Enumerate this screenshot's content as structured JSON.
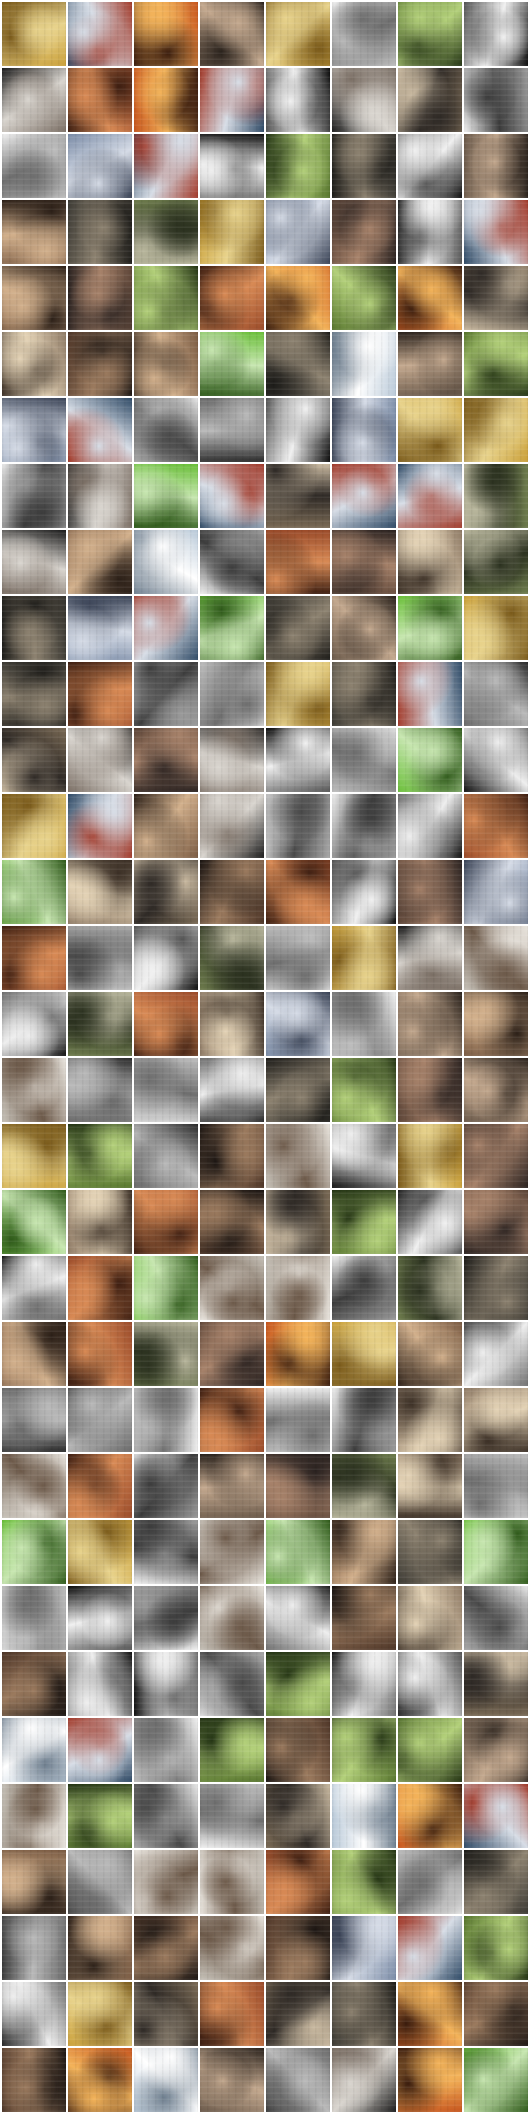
{
  "grid": {
    "palette": [
      [
        "#7a6a55",
        "#2f2a26",
        "#c9b9a0"
      ],
      [
        "#c7c2b9",
        "#6d5a4a",
        "#eae6df"
      ],
      [
        "#1c1c1c",
        "#d9d5cf",
        "#7b6f65"
      ],
      [
        "#e8e8e8",
        "#4a4a4a",
        "#a9a9a9"
      ],
      [
        "#3c3a34",
        "#8d8270",
        "#1d1c19"
      ],
      [
        "#caa03a",
        "#e8d38c",
        "#7a5a1a"
      ],
      [
        "#6e7c4d",
        "#2c3220",
        "#b8b69c"
      ],
      [
        "#5b4437",
        "#a7826a",
        "#2a2220"
      ],
      [
        "#7a8ba6",
        "#d5dbe6",
        "#3a4356"
      ],
      [
        "#4d3527",
        "#9b7a5e",
        "#1b1512"
      ],
      [
        "#f0f0f0",
        "#6e6e6e",
        "#bdbdbd"
      ],
      [
        "#f1f1f1",
        "#3c3c3c",
        "#9a9a9a"
      ],
      [
        "#9a4b2a",
        "#d88a55",
        "#3e1f12"
      ],
      [
        "#8f7b66",
        "#e3d2b5",
        "#3c3026"
      ],
      [
        "#c7561e",
        "#f3b35a",
        "#3b1d0e"
      ],
      [
        "#101010",
        "#eeeeee",
        "#707070"
      ],
      [
        "#6bbf3a",
        "#c7e6b0",
        "#2f5a1a"
      ],
      [
        "#7a5b43",
        "#d2b08c",
        "#2c2018"
      ],
      [
        "#b9c9d8",
        "#ffffff",
        "#6f7f8f"
      ],
      [
        "#57752e",
        "#b3d07a",
        "#243414"
      ],
      [
        "#6b5a4b",
        "#c3a88e",
        "#2a221c"
      ],
      [
        "#2f4a66",
        "#d7dde6",
        "#a23a2a"
      ],
      [
        "#2b2b2b",
        "#b9b9b9",
        "#6a6a6a"
      ],
      [
        "#0c0c0c",
        "#f0f0f0",
        "#555555"
      ]
    ]
  }
}
